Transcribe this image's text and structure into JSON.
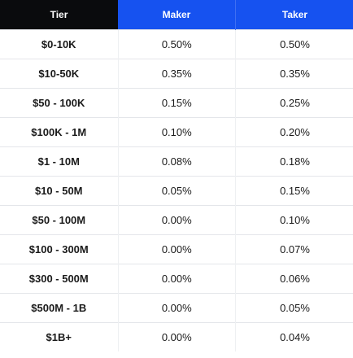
{
  "table": {
    "headers": {
      "tier": "Tier",
      "maker": "Maker",
      "taker": "Taker"
    },
    "rows": [
      {
        "tier": "$0-10K",
        "maker": "0.50%",
        "taker": "0.50%"
      },
      {
        "tier": "$10-50K",
        "maker": "0.35%",
        "taker": "0.35%"
      },
      {
        "tier": "$50 - 100K",
        "maker": "0.15%",
        "taker": "0.25%"
      },
      {
        "tier": "$100K - 1M",
        "maker": "0.10%",
        "taker": "0.20%"
      },
      {
        "tier": "$1 - 10M",
        "maker": "0.08%",
        "taker": "0.18%"
      },
      {
        "tier": "$10 - 50M",
        "maker": "0.05%",
        "taker": "0.15%"
      },
      {
        "tier": "$50 - 100M",
        "maker": "0.00%",
        "taker": "0.10%"
      },
      {
        "tier": "$100 - 300M",
        "maker": "0.00%",
        "taker": "0.07%"
      },
      {
        "tier": "$300 - 500M",
        "maker": "0.00%",
        "taker": "0.06%"
      },
      {
        "tier": "$500M - 1B",
        "maker": "0.00%",
        "taker": "0.05%"
      },
      {
        "tier": "$1B+",
        "maker": "0.00%",
        "taker": "0.04%"
      }
    ]
  },
  "colors": {
    "tier_header_bg": "#0a0b0d",
    "fee_header_bg": "#1652f0",
    "header_text": "#ffffff",
    "body_text": "#1a1a1a",
    "row_divider": "#e4e6ea"
  }
}
